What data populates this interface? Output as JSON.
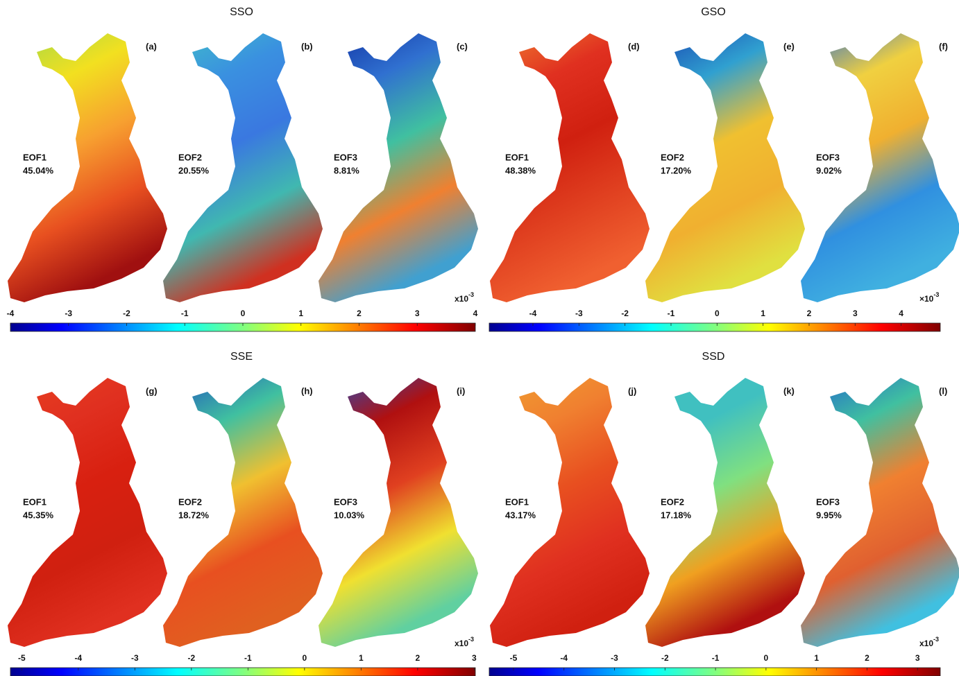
{
  "panels": [
    {
      "title": "SSO",
      "maps": [
        {
          "letter": "(a)",
          "eof": "EOF1",
          "percent": "45.04%"
        },
        {
          "letter": "(b)",
          "eof": "EOF2",
          "percent": "20.55%"
        },
        {
          "letter": "(c)",
          "eof": "EOF3",
          "percent": "8.81%"
        }
      ],
      "colorbar": {
        "lim": [
          -4,
          4
        ],
        "ticks": [
          -4,
          -3,
          -2,
          -1,
          0,
          1,
          2,
          3,
          4
        ],
        "multiplier": {
          "base": "x10",
          "exponent": "-3"
        }
      }
    },
    {
      "title": "GSO",
      "maps": [
        {
          "letter": "(d)",
          "eof": "EOF1",
          "percent": "48.38%"
        },
        {
          "letter": "(e)",
          "eof": "EOF2",
          "percent": "17.20%"
        },
        {
          "letter": "(f)",
          "eof": "EOF3",
          "percent": "9.02%"
        }
      ],
      "colorbar": {
        "lim": [
          -4.95,
          4.85
        ],
        "ticks": [
          -4,
          -3,
          -2,
          -1,
          0,
          1,
          2,
          3,
          4
        ],
        "multiplier": {
          "base": "×10",
          "exponent": "-3"
        }
      }
    },
    {
      "title": "SSE",
      "maps": [
        {
          "letter": "(g)",
          "eof": "EOF1",
          "percent": "45.35%"
        },
        {
          "letter": "(h)",
          "eof": "EOF2",
          "percent": "18.72%"
        },
        {
          "letter": "(i)",
          "eof": "EOF3",
          "percent": "10.03%"
        }
      ],
      "colorbar": {
        "lim": [
          -5.2,
          3.02
        ],
        "ticks": [
          -5,
          -4,
          -3,
          -2,
          -1,
          0,
          1,
          2,
          3
        ],
        "multiplier": {
          "base": "x10",
          "exponent": "-3"
        }
      }
    },
    {
      "title": "SSD",
      "maps": [
        {
          "letter": "(j)",
          "eof": "EOF1",
          "percent": "43.17%"
        },
        {
          "letter": "(k)",
          "eof": "EOF2",
          "percent": "17.18%"
        },
        {
          "letter": "(l)",
          "eof": "EOF3",
          "percent": "9.95%"
        }
      ],
      "colorbar": {
        "lim": [
          -5.48,
          3.45
        ],
        "ticks": [
          -5,
          -4,
          -3,
          -2,
          -1,
          0,
          1,
          2,
          3
        ],
        "multiplier": {
          "base": "x10",
          "exponent": "-3"
        }
      }
    }
  ]
}
